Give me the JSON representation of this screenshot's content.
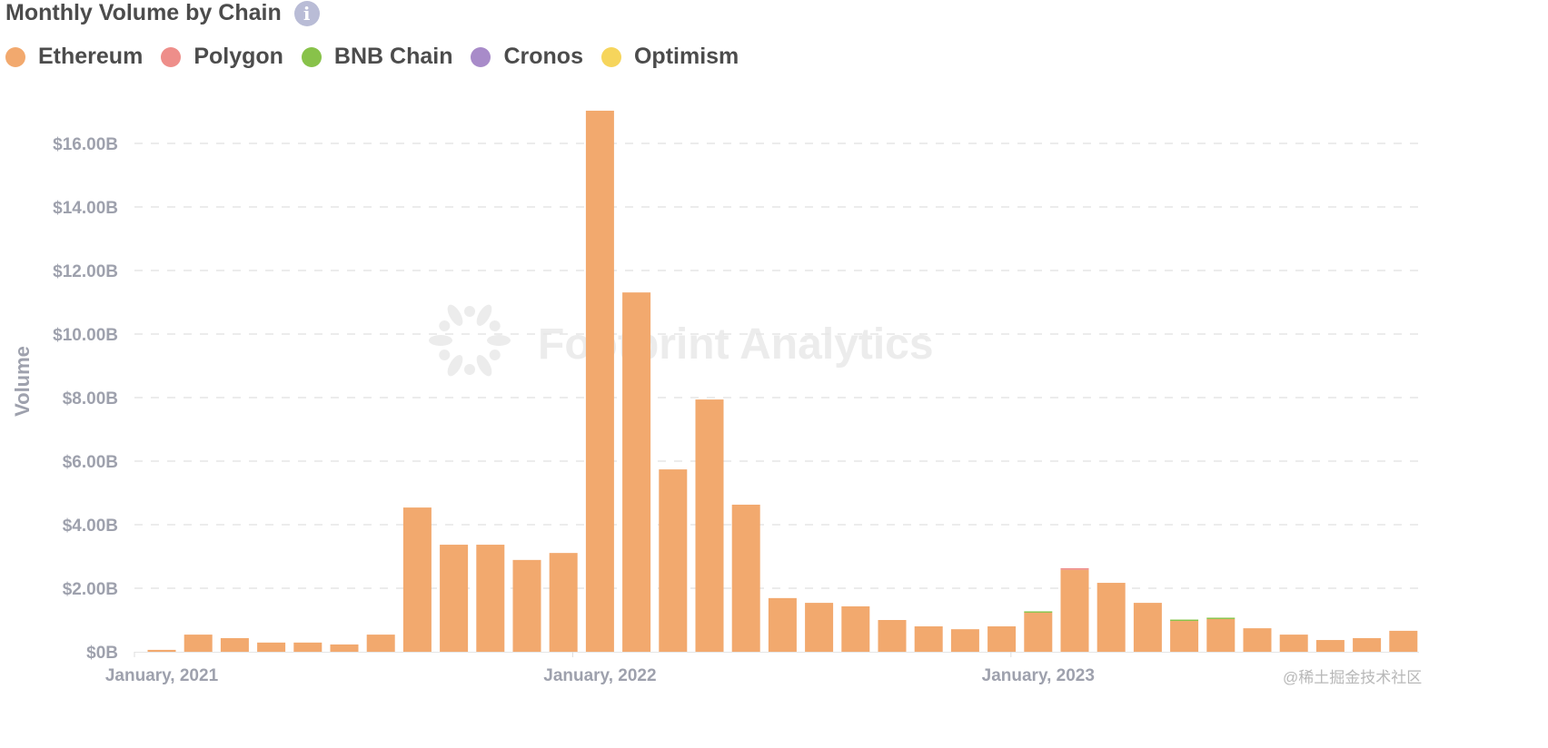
{
  "header": {
    "title": "Monthly Volume by Chain",
    "info_icon": "info-icon"
  },
  "watermark": {
    "text": "Footprint Analytics",
    "site": "@稀土掘金技术社区"
  },
  "chart_data": {
    "type": "bar",
    "stacked": true,
    "title": "Monthly Volume by Chain",
    "ylabel": "Volume",
    "xlabel": "",
    "ylim": [
      0,
      17
    ],
    "yticks": [
      "$0B",
      "$2.00B",
      "$4.00B",
      "$6.00B",
      "$8.00B",
      "$10.00B",
      "$12.00B",
      "$14.00B",
      "$16.00B"
    ],
    "ytick_values": [
      0,
      2,
      4,
      6,
      8,
      10,
      12,
      14,
      16
    ],
    "xtick_labels": [
      {
        "label": "January, 2021",
        "category": "2021-01"
      },
      {
        "label": "January, 2022",
        "category": "2022-01"
      },
      {
        "label": "January, 2023",
        "category": "2023-01"
      }
    ],
    "grid": true,
    "legend_position": "top-left",
    "categories": [
      "2021-01",
      "2021-02",
      "2021-03",
      "2021-04",
      "2021-05",
      "2021-06",
      "2021-07",
      "2021-08",
      "2021-09",
      "2021-10",
      "2021-11",
      "2021-12",
      "2022-01",
      "2022-02",
      "2022-03",
      "2022-04",
      "2022-05",
      "2022-06",
      "2022-07",
      "2022-08",
      "2022-09",
      "2022-10",
      "2022-11",
      "2022-12",
      "2023-01",
      "2023-02",
      "2023-03",
      "2023-04",
      "2023-05",
      "2023-06",
      "2023-07",
      "2023-08",
      "2023-09",
      "2023-10",
      "2023-11"
    ],
    "series": [
      {
        "name": "Ethereum",
        "color": "#f2a96e",
        "values": [
          0.06,
          0.54,
          0.43,
          0.29,
          0.29,
          0.23,
          0.54,
          4.54,
          3.37,
          3.37,
          2.89,
          3.11,
          17.03,
          11.31,
          5.74,
          7.94,
          4.63,
          1.69,
          1.54,
          1.43,
          1.0,
          0.8,
          0.71,
          0.8,
          1.23,
          2.58,
          2.17,
          1.54,
          0.97,
          1.03,
          0.74,
          0.54,
          0.37,
          0.43,
          0.66
        ]
      },
      {
        "name": "Polygon",
        "color": "#ee8e8a",
        "values": [
          0,
          0,
          0,
          0,
          0,
          0,
          0,
          0,
          0,
          0,
          0,
          0,
          0,
          0,
          0,
          0,
          0,
          0,
          0,
          0,
          0,
          0,
          0,
          0,
          0,
          0.05,
          0,
          0,
          0,
          0,
          0,
          0,
          0,
          0,
          0
        ]
      },
      {
        "name": "BNB Chain",
        "color": "#88c24a",
        "values": [
          0,
          0,
          0,
          0,
          0,
          0,
          0,
          0,
          0,
          0,
          0,
          0,
          0,
          0,
          0,
          0,
          0,
          0,
          0,
          0,
          0,
          0,
          0,
          0,
          0.03,
          0,
          0,
          0,
          0.03,
          0.03,
          0,
          0,
          0,
          0,
          0
        ]
      },
      {
        "name": "Cronos",
        "color": "#a88bc9",
        "values": [
          0,
          0,
          0,
          0,
          0,
          0,
          0,
          0,
          0,
          0,
          0,
          0,
          0,
          0,
          0,
          0,
          0,
          0,
          0,
          0,
          0,
          0,
          0,
          0,
          0,
          0,
          0,
          0,
          0,
          0,
          0,
          0,
          0,
          0,
          0
        ]
      },
      {
        "name": "Optimism",
        "color": "#f6d55c",
        "values": [
          0,
          0,
          0,
          0,
          0,
          0,
          0,
          0,
          0,
          0,
          0,
          0,
          0,
          0,
          0,
          0,
          0,
          0,
          0,
          0,
          0,
          0,
          0,
          0,
          0,
          0,
          0,
          0,
          0,
          0,
          0,
          0,
          0,
          0,
          0
        ]
      }
    ]
  }
}
